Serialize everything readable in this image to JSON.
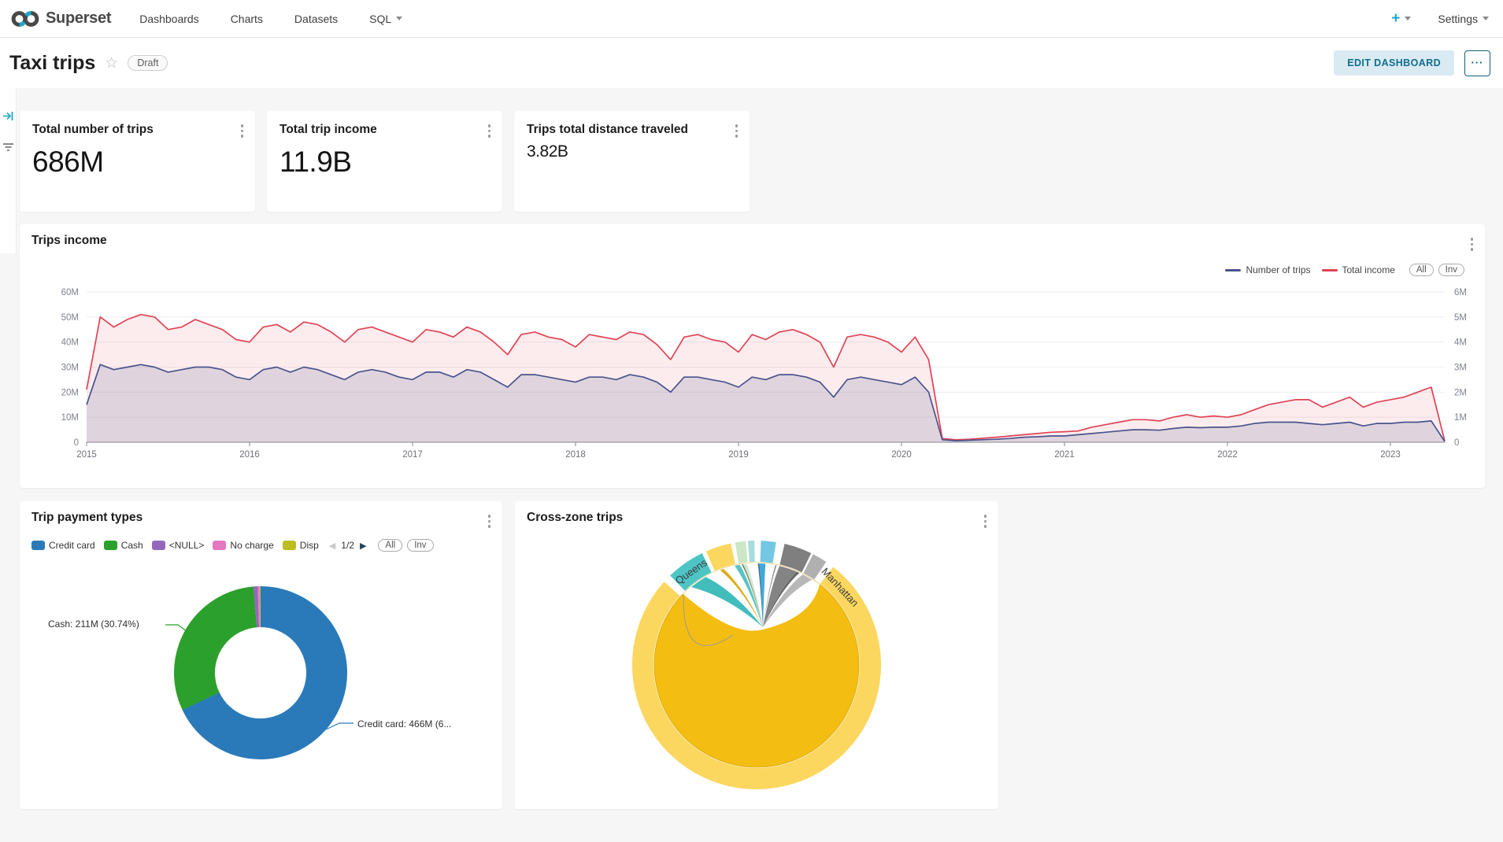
{
  "colors": {
    "accent": "#20A7C9",
    "edit_btn_bg": "#DAEAF3",
    "edit_btn_text": "#0F6E8C",
    "trips_line": "#4A548C",
    "income_line": "#E04355"
  },
  "navbar": {
    "brand": "Superset",
    "items": [
      {
        "label": "Dashboards"
      },
      {
        "label": "Charts"
      },
      {
        "label": "Datasets"
      },
      {
        "label": "SQL"
      }
    ],
    "plus_label": "+",
    "settings_label": "Settings"
  },
  "header": {
    "title": "Taxi trips",
    "star_glyph": "☆",
    "draft_badge": "Draft",
    "edit_button": "EDIT DASHBOARD",
    "more_button": "···"
  },
  "cards": [
    {
      "title": "Total number of trips",
      "value": "686M"
    },
    {
      "title": "Total trip income",
      "value": "11.9B"
    },
    {
      "title": "Trips total distance traveled",
      "value": "3.82B"
    }
  ],
  "trips_income": {
    "title": "Trips income",
    "legend": [
      {
        "label": "Number of trips",
        "color": "#4A548C"
      },
      {
        "label": "Total income",
        "color": "#E04355"
      }
    ],
    "buttons": {
      "all": "All",
      "inv": "Inv"
    },
    "chart_data": {
      "type": "line",
      "title": "Trips income",
      "x_ticks": [
        "2015",
        "2016",
        "2017",
        "2018",
        "2019",
        "2020",
        "2021",
        "2022",
        "2023"
      ],
      "y_left_ticks": [
        "0",
        "10M",
        "20M",
        "30M",
        "40M",
        "50M",
        "60M"
      ],
      "y_right_ticks": [
        "0",
        "1M",
        "2M",
        "3M",
        "4M",
        "5M",
        "6M"
      ],
      "ylim_left": [
        0,
        60
      ],
      "ylim_right": [
        0,
        6
      ],
      "x_start": 2015.0,
      "x_step_months": 1,
      "legend_position": "top-right",
      "grid": true,
      "series": [
        {
          "name": "Total income",
          "axis": "right",
          "units": "left-axis M equivalent",
          "values": [
            21,
            50,
            46,
            49,
            51,
            50,
            45,
            46,
            49,
            47,
            45,
            41,
            40,
            46,
            47,
            44,
            48,
            47,
            44,
            40,
            45,
            46,
            44,
            42,
            40,
            45,
            44,
            42,
            46,
            44,
            40,
            35,
            43,
            44,
            42,
            41,
            38,
            43,
            42,
            41,
            44,
            43,
            39,
            33,
            42,
            43,
            41,
            40,
            36,
            43,
            41,
            44,
            45,
            43,
            40,
            30,
            42,
            43,
            42,
            40,
            36,
            42,
            33,
            1.5,
            1,
            1.2,
            1.6,
            2,
            2.5,
            3,
            3.5,
            4,
            4.2,
            4.5,
            6,
            7,
            8,
            9,
            9,
            8.5,
            10,
            11,
            10,
            10.5,
            10,
            11,
            13,
            15,
            16,
            17,
            17,
            14,
            16,
            18,
            14,
            16,
            17,
            18,
            20,
            22,
            0.5
          ]
        },
        {
          "name": "Number of trips",
          "axis": "left",
          "units": "left-axis M equivalent",
          "values": [
            15,
            31,
            29,
            30,
            31,
            30,
            28,
            29,
            30,
            30,
            29,
            26,
            25,
            29,
            30,
            28,
            30,
            29,
            27,
            25,
            28,
            29,
            28,
            26,
            25,
            28,
            28,
            26,
            29,
            28,
            25,
            22,
            27,
            27,
            26,
            25,
            24,
            26,
            26,
            25,
            27,
            26,
            24,
            20,
            26,
            26,
            25,
            24,
            22,
            26,
            25,
            27,
            27,
            26,
            24,
            18,
            25,
            26,
            25,
            24,
            23,
            26,
            20,
            1,
            0.6,
            0.8,
            1,
            1.2,
            1.5,
            2,
            2.2,
            2.5,
            2.5,
            3,
            3.5,
            4,
            4.5,
            5,
            5,
            4.8,
            5.5,
            6,
            5.8,
            6,
            6,
            6.5,
            7.5,
            8,
            8,
            8,
            7.5,
            7,
            7.5,
            8,
            6.5,
            7.5,
            7.5,
            8,
            8,
            8.5,
            0.3
          ]
        }
      ]
    }
  },
  "payment_types": {
    "title": "Trip payment types",
    "legend": [
      {
        "label": "Credit card",
        "color": "#2A7AB9"
      },
      {
        "label": "Cash",
        "color": "#2CA02C"
      },
      {
        "label": "<NULL>",
        "color": "#9467BD"
      },
      {
        "label": "No charge",
        "color": "#E377C2"
      },
      {
        "label": "Disp",
        "color": "#BCBD22"
      }
    ],
    "pagination": {
      "prev_icon": "◀",
      "label": "1/2",
      "next_icon": "▶"
    },
    "buttons": {
      "all": "All",
      "inv": "Inv"
    },
    "labels": {
      "cash": "Cash: 211M (30.74%)",
      "credit": "Credit card: 466M (6..."
    },
    "chart_data": {
      "type": "pie",
      "donut": true,
      "slices": [
        {
          "label": "Credit card",
          "value": "466M",
          "pct": 67.94,
          "color": "#2A7AB9"
        },
        {
          "label": "Cash",
          "value": "211M",
          "pct": 30.74,
          "color": "#2CA02C"
        },
        {
          "label": "<NULL>",
          "pct": 0.8,
          "color": "#9467BD"
        },
        {
          "label": "No charge",
          "pct": 0.35,
          "color": "#E377C2"
        },
        {
          "label": "Disp",
          "pct": 0.17,
          "color": "#BCBD22"
        }
      ]
    }
  },
  "cross_zone": {
    "title": "Cross-zone trips",
    "chart_data": {
      "type": "chord",
      "visible_labels": [
        "Queens",
        "Manhattan"
      ],
      "ring_base_color": "#FBD760",
      "dominant_color": "#F4BD11",
      "dominant_edge": "#D9A400",
      "segments": [
        {
          "name": "Queens",
          "start": -44,
          "end": -26,
          "color": "#4EC5C5",
          "label": "Queens"
        },
        {
          "name": "gold-small",
          "start": -24,
          "end": -12,
          "color": "#FBD760"
        },
        {
          "name": "pale-green",
          "start": -10,
          "end": -5,
          "color": "#CBE7C6"
        },
        {
          "name": "pale-teal",
          "start": -4,
          "end": -1,
          "color": "#A8DCDC"
        },
        {
          "name": "light-blue",
          "start": 2,
          "end": 9,
          "color": "#74C7E2"
        },
        {
          "name": "gray-dark",
          "start": 13,
          "end": 26,
          "color": "#7F7F7F"
        },
        {
          "name": "gray-light",
          "start": 27,
          "end": 34,
          "color": "#B0B0B0"
        },
        {
          "name": "Manhattan",
          "start": 38,
          "end": 312,
          "color": "#FBD760",
          "label": "Manhattan"
        }
      ],
      "ribbons": [
        {
          "from": -35,
          "width": 10,
          "color": "#2FB5B5",
          "opacity": 0.9
        },
        {
          "from": -11,
          "width": 3,
          "color": "#2FB5B5",
          "opacity": 0.8
        },
        {
          "from": -7,
          "width": 3,
          "color": "#CBE7C6",
          "opacity": 0.9
        },
        {
          "from": 3,
          "width": 4,
          "color": "#2D9FD8",
          "opacity": 0.9
        },
        {
          "from": 19,
          "width": 12,
          "color": "#6E6E6E",
          "opacity": 0.85
        },
        {
          "from": 30,
          "width": 6,
          "color": "#ABABAB",
          "opacity": 0.85
        },
        {
          "from": -20,
          "width": 2,
          "color": "#D9A400",
          "opacity": 0.9
        },
        {
          "from": -8,
          "width": 0.7,
          "color": "#2F2F2F",
          "opacity": 0.6
        },
        {
          "from": 1,
          "width": 0.7,
          "color": "#2F2F2F",
          "opacity": 0.6
        },
        {
          "from": 11,
          "width": 0.7,
          "color": "#2F2F2F",
          "opacity": 0.6
        },
        {
          "from": 24,
          "width": 0.7,
          "color": "#2F2F2F",
          "opacity": 0.55
        }
      ]
    }
  }
}
